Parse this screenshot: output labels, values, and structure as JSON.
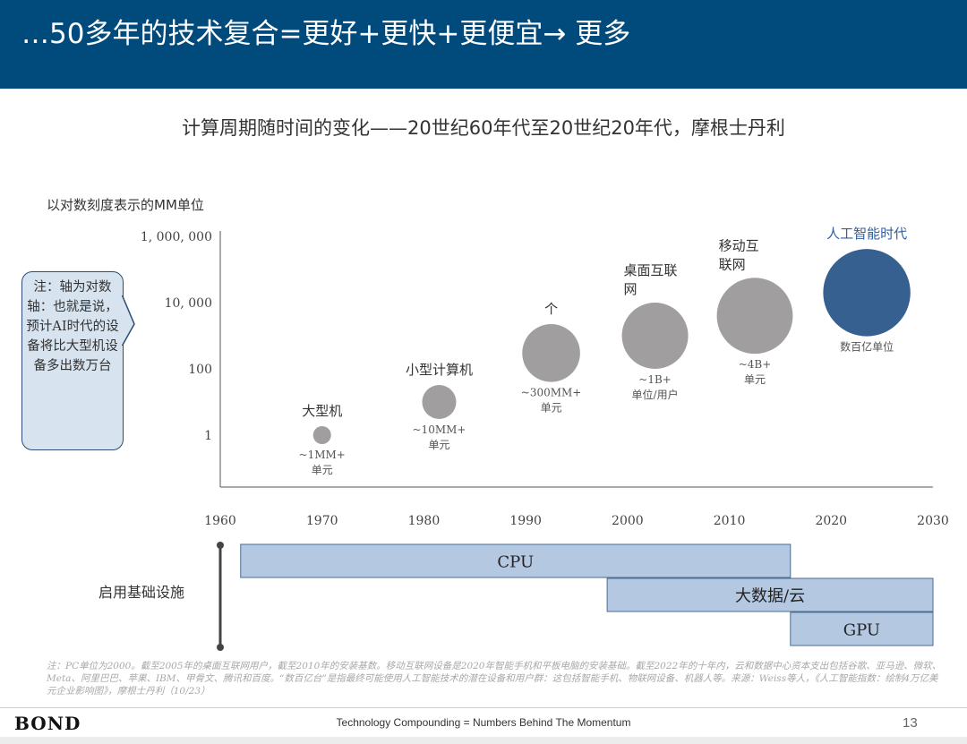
{
  "header": {
    "title": "…50多年的技术复合=更好+更快+更便宜→ 更多"
  },
  "chart_data": {
    "type": "scatter",
    "title": "计算周期随时间的变化——20世纪60年代至20世纪20年代，摩根士丹利",
    "ylabel": "以对数刻度表示的MM单位",
    "y_scale": "log",
    "yticks": [
      {
        "value": 1,
        "label": "1"
      },
      {
        "value": 100,
        "label": "100"
      },
      {
        "value": 10000,
        "label": "10, 000"
      },
      {
        "value": 1000000,
        "label": "1, 000, 000"
      }
    ],
    "x_range": [
      1960,
      2030
    ],
    "xticks": [
      1960,
      1970,
      1980,
      1990,
      2000,
      2010,
      2020,
      2030
    ],
    "grid": false,
    "colors": {
      "gray": "#a09e9f",
      "ai": "#35608f",
      "ai_label": "#2f5fa3"
    },
    "points": [
      {
        "era": "大型机",
        "year": 1970,
        "value": 1,
        "units_lines": [
          "~1MM+",
          "单元"
        ]
      },
      {
        "era": "小型计算机",
        "year": 1981.5,
        "value": 10,
        "units_lines": [
          "~10MM+",
          "单元"
        ]
      },
      {
        "era": "个",
        "year": 1992.5,
        "value": 300,
        "units_lines": [
          "~300MM+",
          "单元"
        ]
      },
      {
        "era_lines": [
          "桌面互联",
          "网"
        ],
        "year": 2002.7,
        "value": 1000,
        "units_lines": [
          "~1B+",
          "单位/用户"
        ]
      },
      {
        "era_lines": [
          "移动互",
          "联网"
        ],
        "year": 2012.5,
        "value": 4000,
        "units_lines": [
          "~4B+",
          "单元"
        ]
      },
      {
        "era": "人工智能时代",
        "year": 2023.5,
        "value": 20000,
        "units_lines": [
          "数百亿单位"
        ],
        "highlight": true
      }
    ],
    "infrastructure": {
      "label": "启用基础设施",
      "bars": [
        {
          "name": "CPU",
          "start": 1962,
          "end": 2016
        },
        {
          "name": "大数据/云",
          "start": 1998,
          "end": 2030
        },
        {
          "name": "GPU",
          "start": 2016,
          "end": 2030
        }
      ],
      "color": "#b4c8e2"
    }
  },
  "note": {
    "text": "注：轴为对数轴：也就是说，预计AI时代的设备将比大型机设备多出数万台"
  },
  "footnote": "注：PC单位为2000。截至2005年的桌面互联网用户，截至2010年的安装基数。移动互联网设备是2020年智能手机和平板电脑的安装基础。截至2022年的十年内，云和数据中心资本支出包括谷歌、亚马逊、微软、Meta、阿里巴巴、苹果、IBM、甲骨文、腾讯和百度。“数百亿台”是指最终可能使用人工智能技术的潜在设备和用户群：这包括智能手机、物联网设备、机器人等。来源：Weiss等人，《人工智能指数：绘制4万亿美元企业影响图》，摩根士丹利（10/23）",
  "footer": {
    "brand": "BOND",
    "center": "Technology Compounding = Numbers Behind The Momentum",
    "page": "13"
  }
}
